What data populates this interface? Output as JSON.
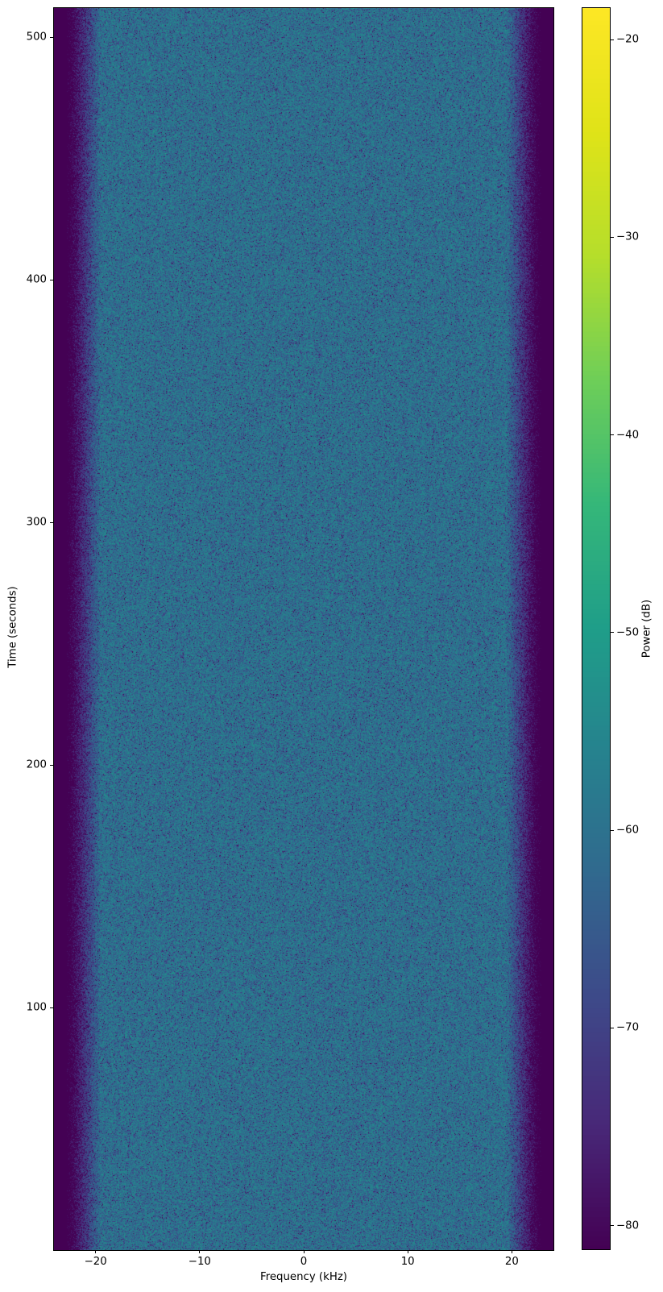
{
  "chart_data": {
    "type": "heatmap",
    "subtype": "spectrogram",
    "title": "",
    "xlabel": "Frequency (kHz)",
    "ylabel": "Time (seconds)",
    "colorbar_label": "Power (dB)",
    "xlim": [
      -24,
      24
    ],
    "ylim": [
      0,
      512
    ],
    "clim": [
      -81.2,
      -18.4
    ],
    "xticks": [
      -20,
      -10,
      0,
      10,
      20
    ],
    "xtick_labels": [
      "−20",
      "−10",
      "0",
      "10",
      "20"
    ],
    "yticks": [
      100,
      200,
      300,
      400,
      500
    ],
    "ytick_labels": [
      "100",
      "200",
      "300",
      "400",
      "500"
    ],
    "colorbar_ticks": [
      -20,
      -30,
      -40,
      -50,
      -60,
      -70,
      -80
    ],
    "colorbar_tick_labels": [
      "−20",
      "−30",
      "−40",
      "−50",
      "−60",
      "−70",
      "−80"
    ],
    "grid": false,
    "legend": "none",
    "colormap": "viridis",
    "colormap_stops": [
      "#440154",
      "#482878",
      "#3e4989",
      "#31688e",
      "#26828e",
      "#1f9e89",
      "#35b779",
      "#6ece58",
      "#b5de2b",
      "#dfe318",
      "#fde725"
    ],
    "noise_profile": {
      "model": "exponential-power-speckle",
      "passband_mean_db": -58.5,
      "passband_edge_khz": 19.5,
      "stopband_edge_khz": 22.8,
      "rolloff_end_db": -85,
      "stopband_mean_db": -95,
      "description": "Flat wideband noise ≈ −60 dB across the passband (|f| < ~19.5 kHz) for the full 0–512 s duration, rolling off to ≈ −81 dB (colormap floor) beyond ±23 kHz."
    }
  }
}
